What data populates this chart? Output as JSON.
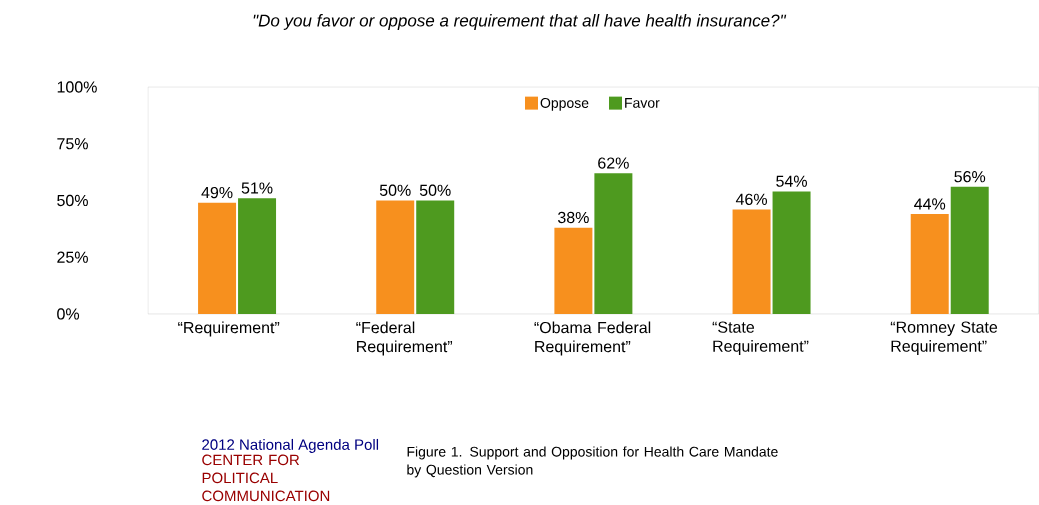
{
  "chart_data": {
    "type": "bar",
    "title": "\"Do you favor or oppose a requirement that all have health insurance?\"",
    "categories": [
      "“Requirement”",
      "“Federal Requirement”",
      "“Obama Federal Requirement”",
      "“State Requirement”",
      "“Romney State Requirement”"
    ],
    "series": [
      {
        "name": "Oppose",
        "color": "#f7901e",
        "values": [
          49,
          50,
          38,
          46,
          44
        ],
        "value_labels": [
          "49%",
          "50%",
          "38%",
          "46%",
          "44%"
        ]
      },
      {
        "name": "Favor",
        "color": "#4e9a1f",
        "values": [
          51,
          50,
          62,
          54,
          56
        ],
        "value_labels": [
          "51%",
          "50%",
          "62%",
          "54%",
          "56%"
        ]
      }
    ],
    "ylim": [
      0,
      100
    ],
    "yticks": [
      {
        "value": 0,
        "label": "0%"
      },
      {
        "value": 25,
        "label": "25%"
      },
      {
        "value": 50,
        "label": "50%"
      },
      {
        "value": 75,
        "label": "75%"
      },
      {
        "value": 100,
        "label": "100%"
      }
    ],
    "grid": false,
    "legend": "top",
    "annotations": [
      "2012 National Agenda Poll",
      "CENTER FOR POLITICAL COMMUNICATION",
      "Figure 1. Support and Opposition for Health Care Mandate by Question Version"
    ]
  }
}
